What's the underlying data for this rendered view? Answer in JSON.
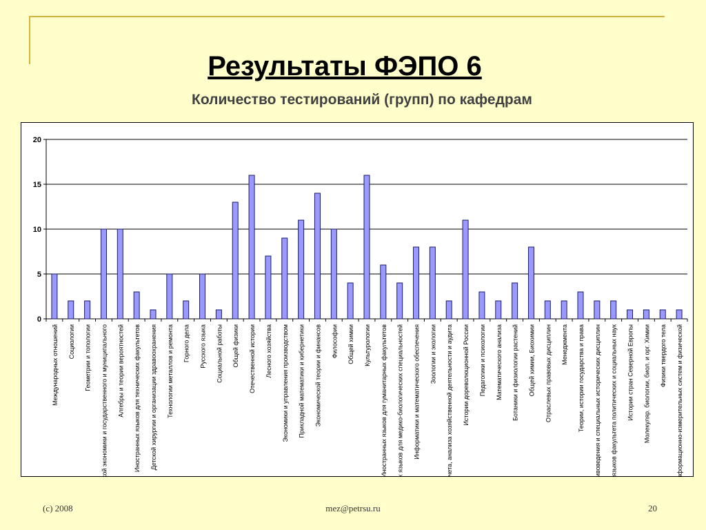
{
  "slide": {
    "title": "Результаты ФЭПО 6",
    "subtitle": "Количество тестирований (групп) по кафедрам"
  },
  "footer": {
    "left": "(c) 2008",
    "center": "mez@petrsu.ru",
    "right": "20"
  },
  "colors": {
    "background": "#ffffcc",
    "bar_fill": "#9999ff",
    "bar_stroke": "#1a1a66",
    "accent_line": "#d6b23a"
  },
  "chart_data": {
    "type": "bar",
    "title": "",
    "xlabel": "",
    "ylabel": "",
    "ylim": [
      0,
      20
    ],
    "yticks": [
      0,
      5,
      10,
      15,
      20
    ],
    "grid": true,
    "categories": [
      "Международных отношений",
      "Социологии",
      "Геометрии и топологии",
      "Теоретической экономики и государственного и муниципального",
      "Алгебры и теории вероятностей",
      "Иностранных языков для технических факультетов",
      "Детской хирургии и организации здравоохранения",
      "Технологии металлов и ремонта",
      "Горного дела",
      "Русского языка",
      "Социальной работы",
      "Общей физики",
      "Отечественной истории",
      "Лесного хозяйства",
      "Экономики и управления производством",
      "Прикладной математики и кибернетики",
      "Экономической теории и финансов",
      "Философии",
      "Общей химии",
      "Культурологии",
      "Иностранных языков для гуманитарных факультетов",
      "Иностранных языков для медико-биологических специальностей",
      "Информатики и математического обеспечения",
      "Зоологии и экологии",
      "Бухгалтерского учета, анализа хозяйственной деятельности и аудита",
      "Истории дореволюционной России",
      "Педагогики и психологии",
      "Математического анализа",
      "Ботаники и физиологии растений",
      "Общей химии, Биохимии",
      "Отраслевых правовых дисциплин",
      "Менеджмента",
      "Теории, истории государства и права",
      "Архивоведения и специальных исторических дисциплин",
      "Иностранных языков факультета политических и социальных наук",
      "Истории стран Северной Европы",
      "Молекуляр. биологии, биол. и орг. Химии",
      "Физики твердого тела",
      "Физики твердого тела, Информационно-измерительных систем и физической"
    ],
    "values": [
      5,
      2,
      2,
      10,
      10,
      3,
      1,
      5,
      2,
      5,
      1,
      13,
      16,
      7,
      9,
      11,
      14,
      10,
      4,
      16,
      6,
      4,
      8,
      8,
      2,
      11,
      3,
      2,
      4,
      8,
      2,
      2,
      3,
      2,
      2,
      1,
      1,
      1,
      1
    ]
  }
}
